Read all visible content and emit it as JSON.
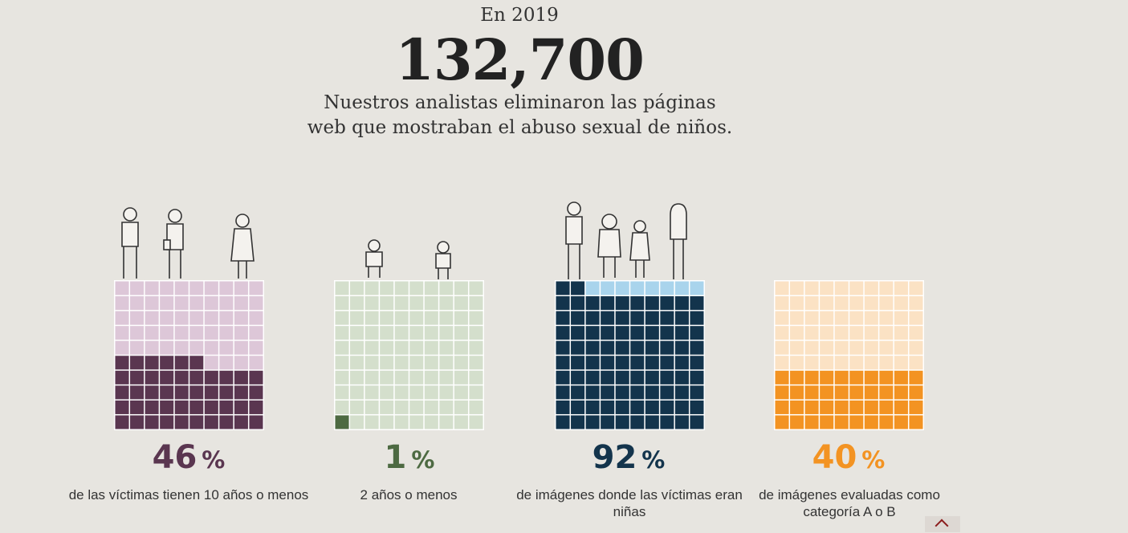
{
  "header": {
    "year": "En 2019",
    "count": "132,700",
    "description": "Nuestros analistas eliminaron las páginas web que mostraban el abuso sexual de niños."
  },
  "chart_data": [
    {
      "type": "waffle",
      "value": 46,
      "grid": [
        10,
        10
      ],
      "unit": "%",
      "caption": "de las víctimas tienen 10 años o menos",
      "colors": {
        "filled": "#5a3650",
        "empty": "#ddc7d8"
      },
      "icon": "children-silhouettes-icon"
    },
    {
      "type": "waffle",
      "value": 1,
      "grid": [
        10,
        10
      ],
      "unit": "%",
      "caption": "2 años o menos",
      "colors": {
        "filled": "#4d6a42",
        "empty": "#d4dfcc"
      },
      "icon": "toddlers-icon"
    },
    {
      "type": "waffle",
      "value": 92,
      "grid": [
        10,
        10
      ],
      "unit": "%",
      "caption": "de imágenes donde las víctimas eran niñas",
      "colors": {
        "filled": "#13344c",
        "empty": "#a9d4ec"
      },
      "icon": "girls-icon"
    },
    {
      "type": "waffle",
      "value": 40,
      "grid": [
        10,
        10
      ],
      "unit": "%",
      "caption": "de imágenes evaluadas como categoría A o B",
      "colors": {
        "filled": "#f39322",
        "empty": "#fbe2c4"
      },
      "icon": ""
    }
  ]
}
